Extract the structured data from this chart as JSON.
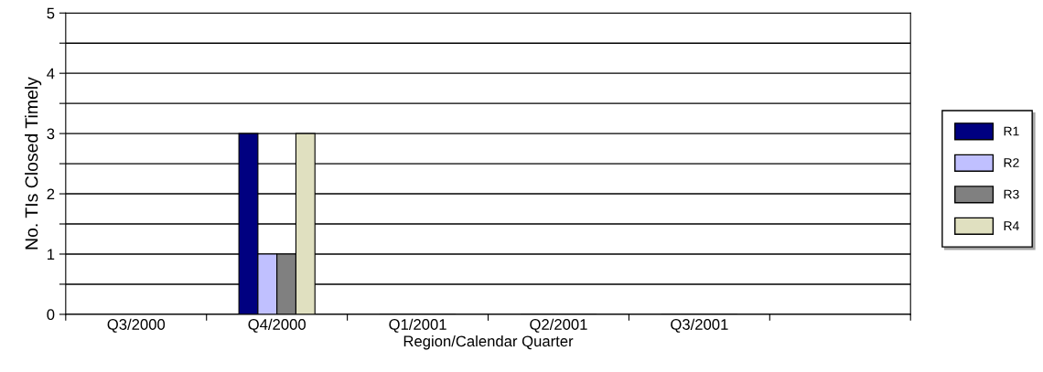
{
  "chart_data": {
    "type": "bar",
    "xlabel": "Region/Calendar Quarter",
    "ylabel": "No. TIs Closed Timely",
    "categories": [
      "Q3/2000",
      "Q4/2000",
      "Q1/2001",
      "Q2/2001",
      "Q3/2001",
      null
    ],
    "series": [
      {
        "name": "R1",
        "color": "#000080",
        "values": [
          null,
          3,
          0,
          0,
          0,
          null
        ]
      },
      {
        "name": "R2",
        "color": "#c0c0ff",
        "values": [
          null,
          1,
          0,
          0,
          0,
          null
        ]
      },
      {
        "name": "R3",
        "color": "#808080",
        "values": [
          null,
          1,
          0,
          0,
          0,
          null
        ]
      },
      {
        "name": "R4",
        "color": "#e0e0c0",
        "values": [
          null,
          3,
          0,
          0,
          0,
          null
        ]
      }
    ],
    "ylim": [
      0,
      5
    ],
    "yticks": [
      0,
      {
        "value": 0.5,
        "label": null
      },
      1,
      {
        "value": 1.5,
        "label": null
      },
      2,
      {
        "value": 2.5,
        "label": null
      },
      3,
      {
        "value": 3.5,
        "label": null
      },
      4,
      {
        "value": 4.5,
        "label": null
      },
      5
    ],
    "grid": "y",
    "legend": "right"
  }
}
